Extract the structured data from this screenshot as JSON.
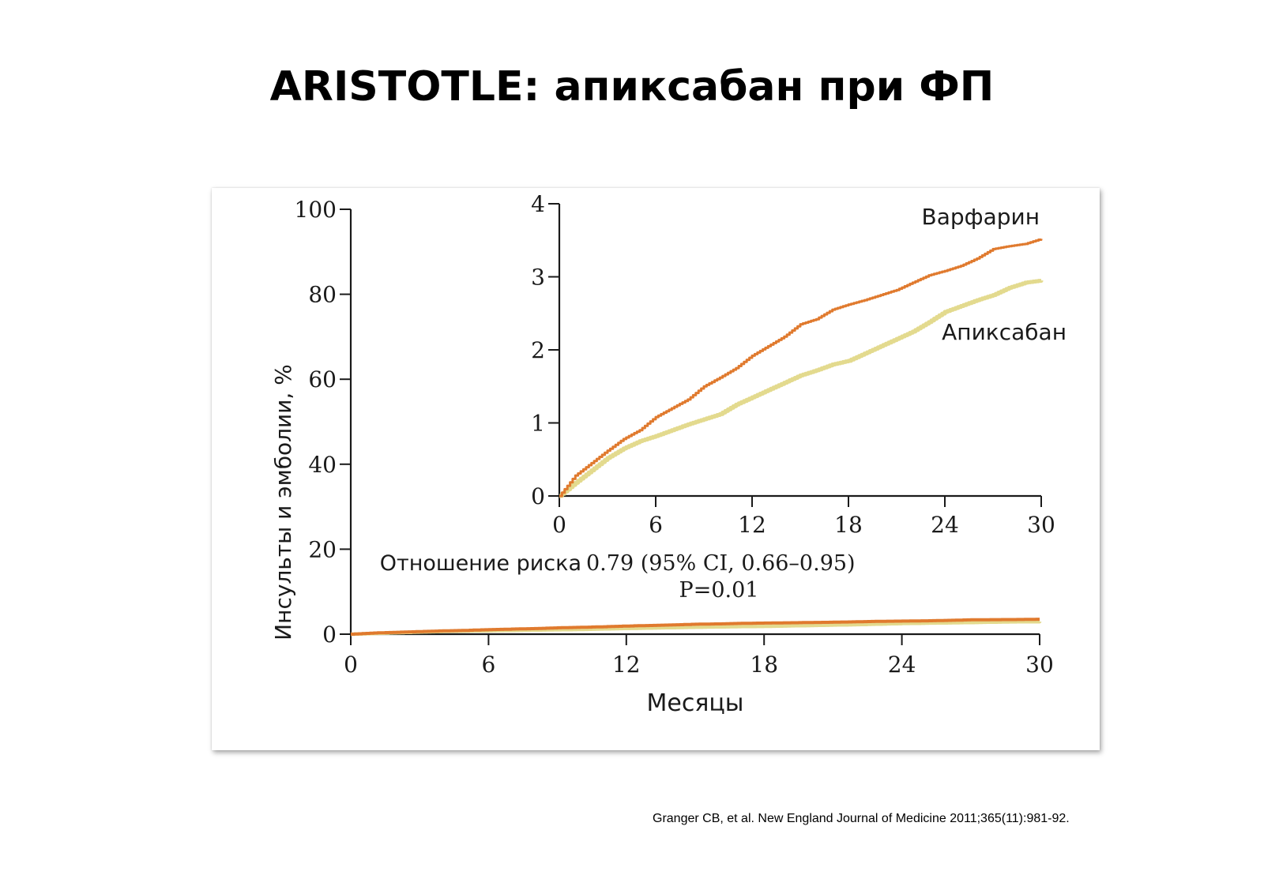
{
  "slide": {
    "title": "ARISTOTLE: апиксабан при ФП",
    "citation": "Granger CB, et al. New England Journal of Medicine 2011;365(11):981-92."
  },
  "chart_data": {
    "type": "line",
    "title": "",
    "ylabel": "Инсульты и эмболии, %",
    "xlabel": "Месяцы",
    "xlim": [
      0,
      30
    ],
    "ylim": [
      0,
      100
    ],
    "x_ticks": [
      "0",
      "6",
      "12",
      "18",
      "24",
      "30"
    ],
    "y_ticks": [
      "0",
      "20",
      "40",
      "60",
      "80",
      "100"
    ],
    "annotation": {
      "line1_label": "Отношение риска",
      "line1_value": "0.79 (95% CI, 0.66–0.95)",
      "line2": "P=0.01"
    },
    "series": [
      {
        "name": "Варфарин",
        "color": "#E07A2E",
        "x": [
          0,
          1,
          2,
          3,
          4,
          5,
          6,
          7,
          8,
          9,
          10,
          11,
          12,
          13,
          14,
          15,
          16,
          17,
          18,
          19,
          20,
          21,
          22,
          23,
          24,
          25,
          26,
          27,
          28,
          29,
          30
        ],
        "y": [
          0,
          0.28,
          0.45,
          0.62,
          0.78,
          0.9,
          1.08,
          1.2,
          1.32,
          1.5,
          1.62,
          1.75,
          1.92,
          2.05,
          2.18,
          2.35,
          2.42,
          2.55,
          2.62,
          2.68,
          2.75,
          2.82,
          2.92,
          3.02,
          3.08,
          3.15,
          3.25,
          3.38,
          3.42,
          3.45,
          3.52
        ]
      },
      {
        "name": "Апиксабан",
        "color": "#E3DA8E",
        "x": [
          0,
          1,
          2,
          3,
          4,
          5,
          6,
          7,
          8,
          9,
          10,
          11,
          12,
          13,
          14,
          15,
          16,
          17,
          18,
          19,
          20,
          21,
          22,
          23,
          24,
          25,
          26,
          27,
          28,
          29,
          30
        ],
        "y": [
          0,
          0.18,
          0.35,
          0.52,
          0.65,
          0.75,
          0.82,
          0.9,
          0.98,
          1.05,
          1.12,
          1.25,
          1.35,
          1.45,
          1.55,
          1.65,
          1.72,
          1.8,
          1.85,
          1.95,
          2.05,
          2.15,
          2.25,
          2.38,
          2.52,
          2.6,
          2.68,
          2.75,
          2.85,
          2.92,
          2.95
        ]
      }
    ],
    "inset": {
      "xlim": [
        0,
        30
      ],
      "ylim": [
        0,
        4
      ],
      "x_ticks": [
        "0",
        "6",
        "12",
        "18",
        "24",
        "30"
      ],
      "y_ticks": [
        "0",
        "1",
        "2",
        "3",
        "4"
      ]
    }
  }
}
